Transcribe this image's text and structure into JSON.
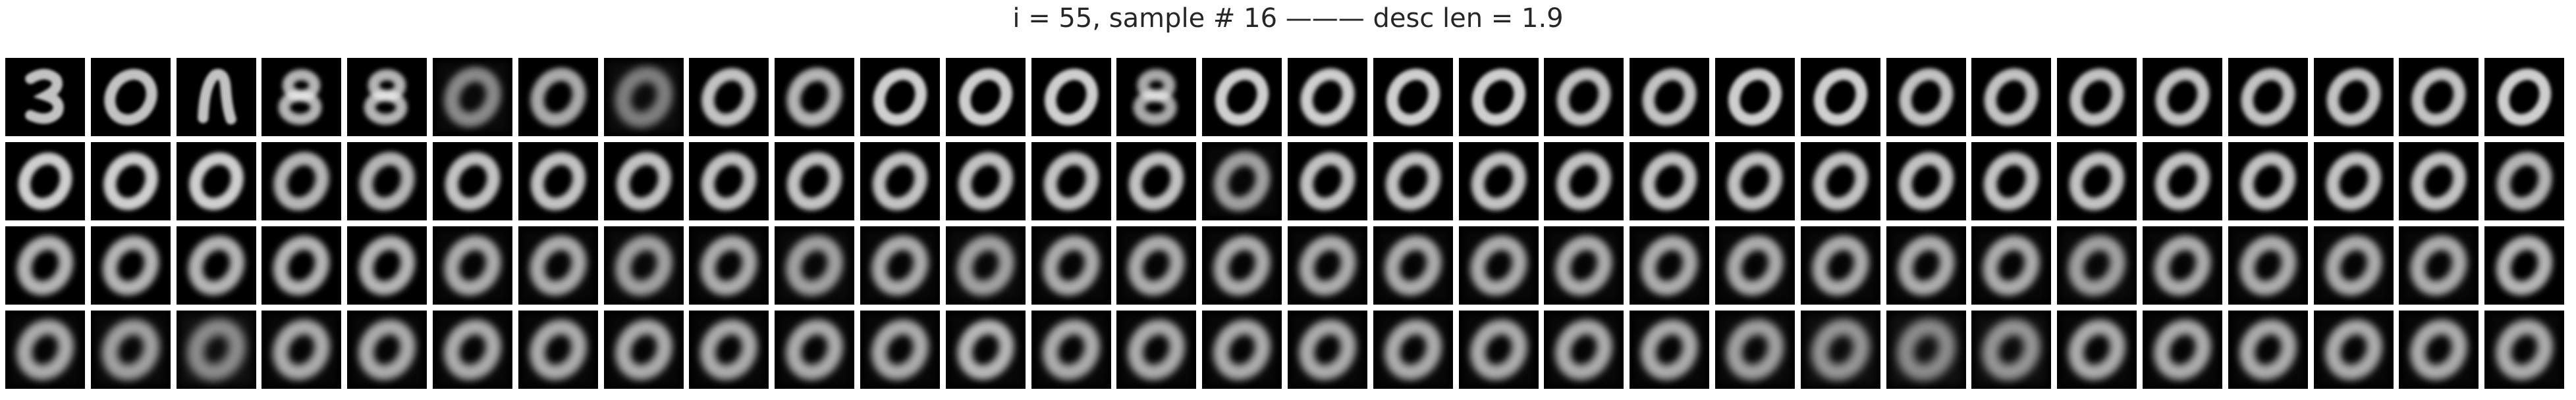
{
  "title": "i = 55, sample # 16 ——— desc len = 1.9",
  "grid": {
    "rows": 4,
    "cols": 30,
    "description": "",
    "rows_data": [
      {
        "row": 1,
        "tiles": [
          {
            "digit": "3",
            "brightness": 0.8,
            "blur": 0.15,
            "noise": 0.05
          },
          {
            "digit": "0",
            "brightness": 0.8,
            "blur": 0.2,
            "noise": 0.05
          },
          {
            "digit": "n",
            "brightness": 0.8,
            "blur": 0.15,
            "noise": 0.05
          },
          {
            "digit": "8",
            "brightness": 0.75,
            "blur": 0.35,
            "noise": 0.1
          },
          {
            "digit": "8",
            "brightness": 0.75,
            "blur": 0.35,
            "noise": 0.1
          },
          {
            "digit": "0",
            "brightness": 0.55,
            "blur": 0.6,
            "noise": 0.2
          },
          {
            "digit": "0",
            "brightness": 0.7,
            "blur": 0.45,
            "noise": 0.1
          },
          {
            "digit": "0",
            "brightness": 0.5,
            "blur": 0.7,
            "noise": 0.25
          },
          {
            "digit": "0",
            "brightness": 0.8,
            "blur": 0.35,
            "noise": 0.05
          },
          {
            "digit": "0",
            "brightness": 0.75,
            "blur": 0.45,
            "noise": 0.1
          },
          {
            "digit": "0",
            "brightness": 0.85,
            "blur": 0.25,
            "noise": 0.05
          },
          {
            "digit": "0",
            "brightness": 0.85,
            "blur": 0.25,
            "noise": 0.05
          },
          {
            "digit": "0",
            "brightness": 0.85,
            "blur": 0.25,
            "noise": 0.05
          },
          {
            "digit": "8",
            "brightness": 0.7,
            "blur": 0.4,
            "noise": 0.1
          },
          {
            "digit": "0",
            "brightness": 0.85,
            "blur": 0.25,
            "noise": 0.05
          },
          {
            "digit": "0",
            "brightness": 0.85,
            "blur": 0.3,
            "noise": 0.05
          },
          {
            "digit": "0",
            "brightness": 0.85,
            "blur": 0.25,
            "noise": 0.05
          },
          {
            "digit": "0",
            "brightness": 0.85,
            "blur": 0.25,
            "noise": 0.05
          },
          {
            "digit": "0",
            "brightness": 0.8,
            "blur": 0.3,
            "noise": 0.05
          },
          {
            "digit": "0",
            "brightness": 0.8,
            "blur": 0.3,
            "noise": 0.05
          },
          {
            "digit": "0",
            "brightness": 0.85,
            "blur": 0.25,
            "noise": 0.05
          },
          {
            "digit": "0",
            "brightness": 0.85,
            "blur": 0.25,
            "noise": 0.05
          },
          {
            "digit": "0",
            "brightness": 0.8,
            "blur": 0.3,
            "noise": 0.05
          },
          {
            "digit": "0",
            "brightness": 0.8,
            "blur": 0.3,
            "noise": 0.05
          },
          {
            "digit": "0",
            "brightness": 0.8,
            "blur": 0.3,
            "noise": 0.05
          },
          {
            "digit": "0",
            "brightness": 0.8,
            "blur": 0.3,
            "noise": 0.05
          },
          {
            "digit": "0",
            "brightness": 0.8,
            "blur": 0.3,
            "noise": 0.05
          },
          {
            "digit": "0",
            "brightness": 0.8,
            "blur": 0.3,
            "noise": 0.05
          },
          {
            "digit": "0",
            "brightness": 0.8,
            "blur": 0.3,
            "noise": 0.05
          },
          {
            "digit": "0",
            "brightness": 0.85,
            "blur": 0.25,
            "noise": 0.05
          }
        ]
      },
      {
        "row": 2,
        "tiles": [
          {
            "digit": "0",
            "brightness": 0.85,
            "blur": 0.3,
            "noise": 0.05
          },
          {
            "digit": "0",
            "brightness": 0.85,
            "blur": 0.35,
            "noise": 0.05
          },
          {
            "digit": "0",
            "brightness": 0.85,
            "blur": 0.35,
            "noise": 0.05
          },
          {
            "digit": "0",
            "brightness": 0.75,
            "blur": 0.45,
            "noise": 0.1
          },
          {
            "digit": "0",
            "brightness": 0.75,
            "blur": 0.45,
            "noise": 0.1
          },
          {
            "digit": "0",
            "brightness": 0.8,
            "blur": 0.4,
            "noise": 0.05
          },
          {
            "digit": "0",
            "brightness": 0.8,
            "blur": 0.4,
            "noise": 0.05
          },
          {
            "digit": "0",
            "brightness": 0.8,
            "blur": 0.4,
            "noise": 0.05
          },
          {
            "digit": "0",
            "brightness": 0.8,
            "blur": 0.4,
            "noise": 0.05
          },
          {
            "digit": "0",
            "brightness": 0.8,
            "blur": 0.4,
            "noise": 0.05
          },
          {
            "digit": "0",
            "brightness": 0.8,
            "blur": 0.4,
            "noise": 0.05
          },
          {
            "digit": "0",
            "brightness": 0.8,
            "blur": 0.4,
            "noise": 0.05
          },
          {
            "digit": "0",
            "brightness": 0.8,
            "blur": 0.4,
            "noise": 0.05
          },
          {
            "digit": "0",
            "brightness": 0.8,
            "blur": 0.4,
            "noise": 0.05
          },
          {
            "digit": "0",
            "brightness": 0.65,
            "blur": 0.55,
            "noise": 0.15
          },
          {
            "digit": "0",
            "brightness": 0.8,
            "blur": 0.4,
            "noise": 0.05
          },
          {
            "digit": "0",
            "brightness": 0.8,
            "blur": 0.4,
            "noise": 0.05
          },
          {
            "digit": "0",
            "brightness": 0.8,
            "blur": 0.4,
            "noise": 0.05
          },
          {
            "digit": "0",
            "brightness": 0.8,
            "blur": 0.4,
            "noise": 0.05
          },
          {
            "digit": "0",
            "brightness": 0.8,
            "blur": 0.4,
            "noise": 0.05
          },
          {
            "digit": "0",
            "brightness": 0.8,
            "blur": 0.4,
            "noise": 0.05
          },
          {
            "digit": "0",
            "brightness": 0.8,
            "blur": 0.4,
            "noise": 0.05
          },
          {
            "digit": "0",
            "brightness": 0.8,
            "blur": 0.4,
            "noise": 0.05
          },
          {
            "digit": "0",
            "brightness": 0.8,
            "blur": 0.4,
            "noise": 0.05
          },
          {
            "digit": "0",
            "brightness": 0.8,
            "blur": 0.4,
            "noise": 0.05
          },
          {
            "digit": "0",
            "brightness": 0.8,
            "blur": 0.4,
            "noise": 0.05
          },
          {
            "digit": "0",
            "brightness": 0.8,
            "blur": 0.4,
            "noise": 0.05
          },
          {
            "digit": "0",
            "brightness": 0.8,
            "blur": 0.4,
            "noise": 0.05
          },
          {
            "digit": "0",
            "brightness": 0.8,
            "blur": 0.4,
            "noise": 0.05
          },
          {
            "digit": "0",
            "brightness": 0.75,
            "blur": 0.45,
            "noise": 0.1
          }
        ]
      },
      {
        "row": 3,
        "tiles": [
          {
            "digit": "0",
            "brightness": 0.75,
            "blur": 0.55,
            "noise": 0.1
          },
          {
            "digit": "0",
            "brightness": 0.75,
            "blur": 0.55,
            "noise": 0.1
          },
          {
            "digit": "0",
            "brightness": 0.75,
            "blur": 0.55,
            "noise": 0.1
          },
          {
            "digit": "0",
            "brightness": 0.75,
            "blur": 0.55,
            "noise": 0.1
          },
          {
            "digit": "0",
            "brightness": 0.75,
            "blur": 0.55,
            "noise": 0.1
          },
          {
            "digit": "0",
            "brightness": 0.7,
            "blur": 0.6,
            "noise": 0.15
          },
          {
            "digit": "0",
            "brightness": 0.7,
            "blur": 0.6,
            "noise": 0.15
          },
          {
            "digit": "0",
            "brightness": 0.65,
            "blur": 0.65,
            "noise": 0.2
          },
          {
            "digit": "0",
            "brightness": 0.7,
            "blur": 0.6,
            "noise": 0.15
          },
          {
            "digit": "0",
            "brightness": 0.65,
            "blur": 0.65,
            "noise": 0.2
          },
          {
            "digit": "0",
            "brightness": 0.7,
            "blur": 0.6,
            "noise": 0.15
          },
          {
            "digit": "0",
            "brightness": 0.65,
            "blur": 0.65,
            "noise": 0.2
          },
          {
            "digit": "0",
            "brightness": 0.7,
            "blur": 0.6,
            "noise": 0.15
          },
          {
            "digit": "0",
            "brightness": 0.7,
            "blur": 0.6,
            "noise": 0.15
          },
          {
            "digit": "0",
            "brightness": 0.7,
            "blur": 0.6,
            "noise": 0.15
          },
          {
            "digit": "0",
            "brightness": 0.7,
            "blur": 0.6,
            "noise": 0.15
          },
          {
            "digit": "0",
            "brightness": 0.7,
            "blur": 0.6,
            "noise": 0.15
          },
          {
            "digit": "0",
            "brightness": 0.7,
            "blur": 0.6,
            "noise": 0.15
          },
          {
            "digit": "0",
            "brightness": 0.7,
            "blur": 0.6,
            "noise": 0.15
          },
          {
            "digit": "0",
            "brightness": 0.7,
            "blur": 0.6,
            "noise": 0.15
          },
          {
            "digit": "0",
            "brightness": 0.7,
            "blur": 0.6,
            "noise": 0.15
          },
          {
            "digit": "0",
            "brightness": 0.7,
            "blur": 0.6,
            "noise": 0.15
          },
          {
            "digit": "0",
            "brightness": 0.7,
            "blur": 0.6,
            "noise": 0.15
          },
          {
            "digit": "0",
            "brightness": 0.7,
            "blur": 0.6,
            "noise": 0.15
          },
          {
            "digit": "0",
            "brightness": 0.65,
            "blur": 0.65,
            "noise": 0.2
          },
          {
            "digit": "0",
            "brightness": 0.7,
            "blur": 0.6,
            "noise": 0.15
          },
          {
            "digit": "0",
            "brightness": 0.7,
            "blur": 0.6,
            "noise": 0.15
          },
          {
            "digit": "0",
            "brightness": 0.7,
            "blur": 0.6,
            "noise": 0.15
          },
          {
            "digit": "0",
            "brightness": 0.7,
            "blur": 0.6,
            "noise": 0.15
          },
          {
            "digit": "0",
            "brightness": 0.75,
            "blur": 0.55,
            "noise": 0.1
          }
        ]
      },
      {
        "row": 4,
        "tiles": [
          {
            "digit": "0",
            "brightness": 0.7,
            "blur": 0.65,
            "noise": 0.15
          },
          {
            "digit": "0",
            "brightness": 0.65,
            "blur": 0.7,
            "noise": 0.2
          },
          {
            "digit": "0",
            "brightness": 0.55,
            "blur": 0.8,
            "noise": 0.35
          },
          {
            "digit": "0",
            "brightness": 0.7,
            "blur": 0.65,
            "noise": 0.15
          },
          {
            "digit": "0",
            "brightness": 0.7,
            "blur": 0.65,
            "noise": 0.15
          },
          {
            "digit": "0",
            "brightness": 0.7,
            "blur": 0.65,
            "noise": 0.15
          },
          {
            "digit": "0",
            "brightness": 0.7,
            "blur": 0.65,
            "noise": 0.15
          },
          {
            "digit": "0",
            "brightness": 0.7,
            "blur": 0.65,
            "noise": 0.15
          },
          {
            "digit": "0",
            "brightness": 0.7,
            "blur": 0.65,
            "noise": 0.15
          },
          {
            "digit": "0",
            "brightness": 0.7,
            "blur": 0.65,
            "noise": 0.15
          },
          {
            "digit": "0",
            "brightness": 0.7,
            "blur": 0.65,
            "noise": 0.15
          },
          {
            "digit": "0",
            "brightness": 0.75,
            "blur": 0.6,
            "noise": 0.15
          },
          {
            "digit": "0",
            "brightness": 0.7,
            "blur": 0.65,
            "noise": 0.15
          },
          {
            "digit": "0",
            "brightness": 0.7,
            "blur": 0.65,
            "noise": 0.15
          },
          {
            "digit": "0",
            "brightness": 0.7,
            "blur": 0.65,
            "noise": 0.15
          },
          {
            "digit": "0",
            "brightness": 0.7,
            "blur": 0.65,
            "noise": 0.15
          },
          {
            "digit": "0",
            "brightness": 0.7,
            "blur": 0.65,
            "noise": 0.15
          },
          {
            "digit": "0",
            "brightness": 0.7,
            "blur": 0.65,
            "noise": 0.15
          },
          {
            "digit": "0",
            "brightness": 0.7,
            "blur": 0.65,
            "noise": 0.15
          },
          {
            "digit": "0",
            "brightness": 0.7,
            "blur": 0.65,
            "noise": 0.15
          },
          {
            "digit": "0",
            "brightness": 0.65,
            "blur": 0.7,
            "noise": 0.2
          },
          {
            "digit": "0",
            "brightness": 0.6,
            "blur": 0.75,
            "noise": 0.3
          },
          {
            "digit": "0",
            "brightness": 0.55,
            "blur": 0.8,
            "noise": 0.35
          },
          {
            "digit": "0",
            "brightness": 0.6,
            "blur": 0.75,
            "noise": 0.3
          },
          {
            "digit": "0",
            "brightness": 0.7,
            "blur": 0.65,
            "noise": 0.15
          },
          {
            "digit": "0",
            "brightness": 0.7,
            "blur": 0.65,
            "noise": 0.15
          },
          {
            "digit": "0",
            "brightness": 0.7,
            "blur": 0.65,
            "noise": 0.15
          },
          {
            "digit": "0",
            "brightness": 0.7,
            "blur": 0.65,
            "noise": 0.15
          },
          {
            "digit": "0",
            "brightness": 0.7,
            "blur": 0.65,
            "noise": 0.15
          },
          {
            "digit": "0",
            "brightness": 0.7,
            "blur": 0.65,
            "noise": 0.15
          }
        ]
      }
    ]
  },
  "colors": {
    "background": "#ffffff",
    "tile_background": "#000000",
    "title_text": "#262626",
    "digit_fill": "#f2f2f2"
  }
}
